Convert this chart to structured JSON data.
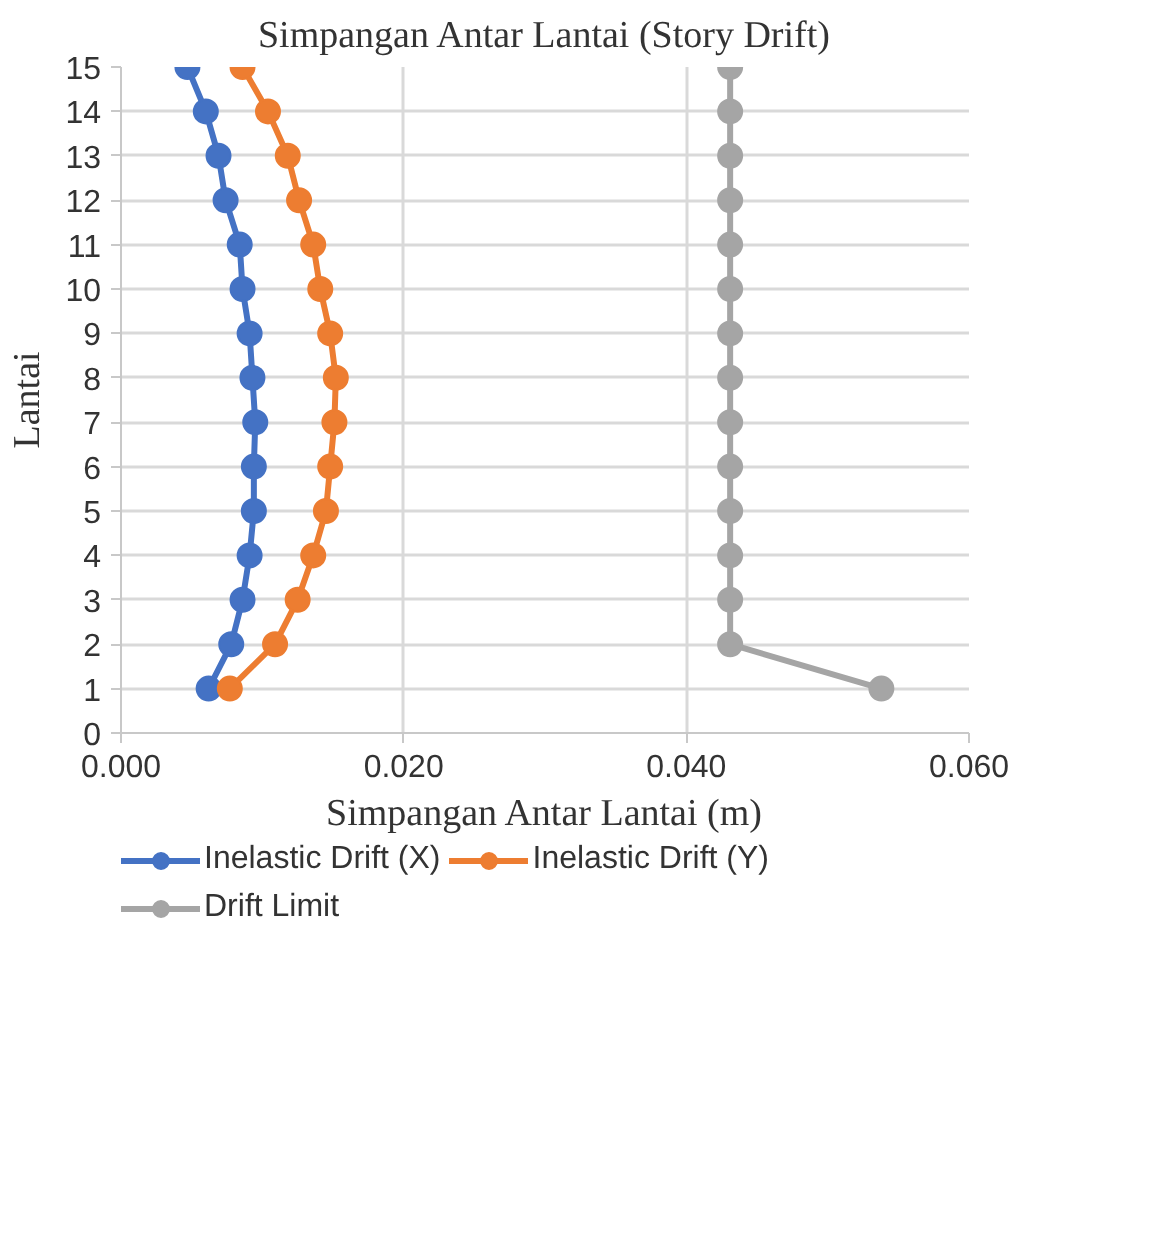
{
  "chart_data": {
    "type": "line",
    "title": "Simpangan Antar Lantai (Story Drift)",
    "xlabel": "Simpangan Antar Lantai (m)",
    "ylabel": "Lantai",
    "xlim": [
      0,
      0.06
    ],
    "xticks": [
      {
        "value": 0,
        "label": "0.000"
      },
      {
        "value": 0.02,
        "label": "0.020"
      },
      {
        "value": 0.04,
        "label": "0.040"
      },
      {
        "value": 0.06,
        "label": "0.060"
      }
    ],
    "ylim": [
      0,
      15
    ],
    "yticks": [
      0,
      1,
      2,
      3,
      4,
      5,
      6,
      7,
      8,
      9,
      10,
      11,
      12,
      13,
      14,
      15
    ],
    "grid": true,
    "legend": "bottom",
    "marker": "circle",
    "line_style": "solid",
    "series": [
      {
        "name": "Inelastic Drift (X)",
        "color": "#4472c4",
        "x": [
          0.0062,
          0.0078,
          0.0086,
          0.0091,
          0.0094,
          0.0094,
          0.0095,
          0.0093,
          0.0091,
          0.0086,
          0.0084,
          0.0074,
          0.0069,
          0.006,
          0.0047
        ],
        "values": [
          1,
          2,
          3,
          4,
          5,
          6,
          7,
          8,
          9,
          10,
          11,
          12,
          13,
          14,
          15
        ]
      },
      {
        "name": "Inelastic Drift (Y)",
        "color": "#ed7d31",
        "x": [
          0.0077,
          0.0109,
          0.0125,
          0.0136,
          0.0145,
          0.0148,
          0.0151,
          0.0152,
          0.0148,
          0.0141,
          0.0136,
          0.0126,
          0.0118,
          0.0104,
          0.0086
        ],
        "values": [
          1,
          2,
          3,
          4,
          5,
          6,
          7,
          8,
          9,
          10,
          11,
          12,
          13,
          14,
          15
        ]
      },
      {
        "name": "Drift Limit",
        "color": "#a5a5a5",
        "x": [
          0.0538,
          0.0431,
          0.0431,
          0.0431,
          0.0431,
          0.0431,
          0.0431,
          0.0431,
          0.0431,
          0.0431,
          0.0431,
          0.0431,
          0.0431,
          0.0431,
          0.0431
        ],
        "values": [
          1,
          2,
          3,
          4,
          5,
          6,
          7,
          8,
          9,
          10,
          11,
          12,
          13,
          14,
          15
        ]
      }
    ]
  }
}
